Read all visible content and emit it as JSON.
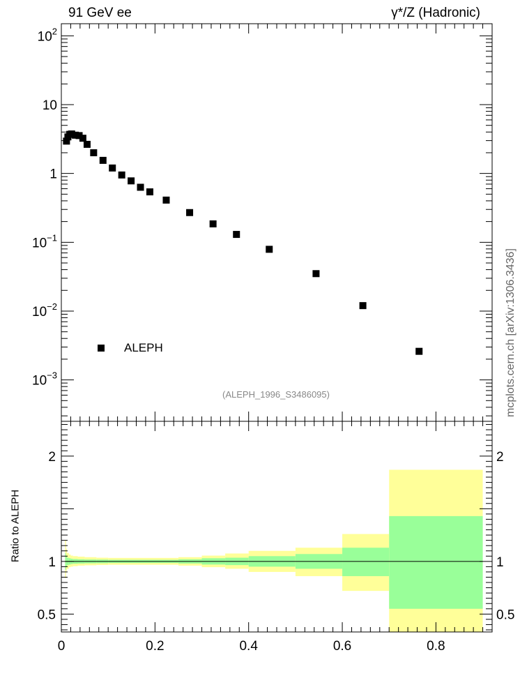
{
  "header": {
    "title_left": "91 GeV ee",
    "title_right": "γ*/Z (Hadronic)"
  },
  "watermark": "mcplots.cern.ch [arXiv:1306.3436]",
  "analysis_id": "(ALEPH_1996_S3486095)",
  "chart_data": [
    {
      "type": "scatter",
      "panel": "main",
      "yscale": "log",
      "xlim": [
        0,
        0.92
      ],
      "ylim": [
        0.00025,
        150
      ],
      "y_tick_labels": [
        "10^-3",
        "10^-2",
        "10^-1",
        "1",
        "10",
        "10^2"
      ],
      "legend": {
        "entries": [
          "ALEPH"
        ],
        "placement": "bottom-left",
        "marker": "square"
      },
      "series": [
        {
          "name": "ALEPH",
          "color": "#000000",
          "x": [
            0.011,
            0.014,
            0.018,
            0.022,
            0.03,
            0.038,
            0.046,
            0.055,
            0.069,
            0.089,
            0.109,
            0.129,
            0.149,
            0.169,
            0.189,
            0.224,
            0.274,
            0.324,
            0.374,
            0.444,
            0.544,
            0.644,
            0.764
          ],
          "y": [
            2.95,
            3.4,
            3.7,
            3.75,
            3.6,
            3.55,
            3.25,
            2.65,
            2.0,
            1.55,
            1.2,
            0.95,
            0.78,
            0.63,
            0.54,
            0.41,
            0.27,
            0.185,
            0.13,
            0.079,
            0.035,
            0.012,
            0.0026
          ]
        }
      ]
    },
    {
      "type": "area",
      "panel": "ratio",
      "ylabel": "Ratio to ALEPH",
      "xlim": [
        0,
        0.92
      ],
      "ylim": [
        0.33,
        2.33
      ],
      "x_tick_labels": [
        "0",
        "0.2",
        "0.4",
        "0.6",
        "0.8"
      ],
      "y_tick_labels": [
        "0.5",
        "1",
        "2"
      ],
      "reference_line": 1,
      "colors": {
        "inner": "#99ff99",
        "outer": "#ffff99"
      },
      "bins": [
        {
          "x0": 0.008,
          "x1": 0.01,
          "in_lo": 0.92,
          "in_hi": 1.08,
          "out_lo": 0.84,
          "out_hi": 1.2
        },
        {
          "x0": 0.01,
          "x1": 0.012,
          "in_lo": 0.95,
          "in_hi": 1.05,
          "out_lo": 0.91,
          "out_hi": 1.12
        },
        {
          "x0": 0.012,
          "x1": 0.016,
          "in_lo": 0.965,
          "in_hi": 1.035,
          "out_lo": 0.93,
          "out_hi": 1.08
        },
        {
          "x0": 0.016,
          "x1": 0.02,
          "in_lo": 0.97,
          "in_hi": 1.03,
          "out_lo": 0.945,
          "out_hi": 1.065
        },
        {
          "x0": 0.02,
          "x1": 0.025,
          "in_lo": 0.975,
          "in_hi": 1.025,
          "out_lo": 0.95,
          "out_hi": 1.055
        },
        {
          "x0": 0.025,
          "x1": 0.035,
          "in_lo": 0.978,
          "in_hi": 1.022,
          "out_lo": 0.955,
          "out_hi": 1.05
        },
        {
          "x0": 0.035,
          "x1": 0.05,
          "in_lo": 0.98,
          "in_hi": 1.02,
          "out_lo": 0.96,
          "out_hi": 1.045
        },
        {
          "x0": 0.05,
          "x1": 0.075,
          "in_lo": 0.982,
          "in_hi": 1.018,
          "out_lo": 0.963,
          "out_hi": 1.04
        },
        {
          "x0": 0.075,
          "x1": 0.1,
          "in_lo": 0.983,
          "in_hi": 1.017,
          "out_lo": 0.966,
          "out_hi": 1.035
        },
        {
          "x0": 0.1,
          "x1": 0.25,
          "in_lo": 0.985,
          "in_hi": 1.015,
          "out_lo": 0.968,
          "out_hi": 1.033
        },
        {
          "x0": 0.25,
          "x1": 0.3,
          "in_lo": 0.98,
          "in_hi": 1.02,
          "out_lo": 0.96,
          "out_hi": 1.04
        },
        {
          "x0": 0.3,
          "x1": 0.35,
          "in_lo": 0.97,
          "in_hi": 1.03,
          "out_lo": 0.945,
          "out_hi": 1.055
        },
        {
          "x0": 0.35,
          "x1": 0.4,
          "in_lo": 0.965,
          "in_hi": 1.035,
          "out_lo": 0.93,
          "out_hi": 1.075
        },
        {
          "x0": 0.4,
          "x1": 0.5,
          "in_lo": 0.95,
          "in_hi": 1.05,
          "out_lo": 0.9,
          "out_hi": 1.1
        },
        {
          "x0": 0.5,
          "x1": 0.6,
          "in_lo": 0.93,
          "in_hi": 1.07,
          "out_lo": 0.86,
          "out_hi": 1.13
        },
        {
          "x0": 0.6,
          "x1": 0.7,
          "in_lo": 0.86,
          "in_hi": 1.13,
          "out_lo": 0.72,
          "out_hi": 1.26
        },
        {
          "x0": 0.7,
          "x1": 0.9,
          "in_lo": 0.55,
          "in_hi": 1.43,
          "out_lo": 0.33,
          "out_hi": 1.87
        }
      ]
    }
  ]
}
